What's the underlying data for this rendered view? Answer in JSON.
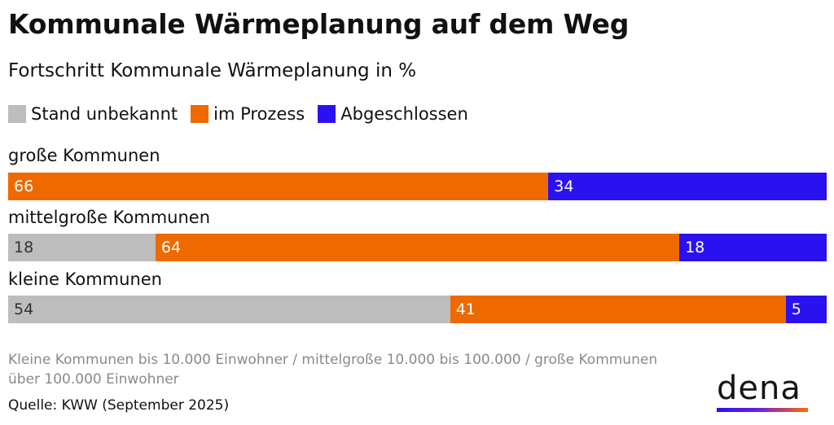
{
  "header": {
    "title": "Kommunale Wärmeplanung auf dem Weg",
    "subtitle": "Fortschritt Kommunale Wärmeplanung in %"
  },
  "colors": {
    "unknown": "#bdbdbd",
    "in_progress": "#ee6a00",
    "completed": "#2a12f0",
    "label_dark": "#333333",
    "label_light": "#ffffff"
  },
  "chart_data": {
    "type": "bar",
    "orientation": "horizontal",
    "stacked": true,
    "title": "Kommunale Wärmeplanung auf dem Weg",
    "subtitle": "Fortschritt Kommunale Wärmeplanung in %",
    "xlim": [
      0,
      100
    ],
    "legend_position": "top-left",
    "grid": false,
    "categories": [
      "große Kommunen",
      "mittelgroße Kommunen",
      "kleine Kommunen"
    ],
    "series": [
      {
        "name": "Stand unbekannt",
        "color": "#bdbdbd",
        "values": [
          0,
          18,
          54
        ]
      },
      {
        "name": "im Prozess",
        "color": "#ee6a00",
        "values": [
          66,
          64,
          41
        ]
      },
      {
        "name": "Abgeschlossen",
        "color": "#2a12f0",
        "values": [
          34,
          18,
          5
        ]
      }
    ]
  },
  "footer": {
    "note": "Kleine Kommunen bis 10.000 Einwohner / mittelgroße 10.000 bis 100.000 / große Kommunen über 100.000 Einwohner",
    "source": "Quelle: KWW (September 2025)"
  },
  "logo": {
    "text": "dena"
  }
}
